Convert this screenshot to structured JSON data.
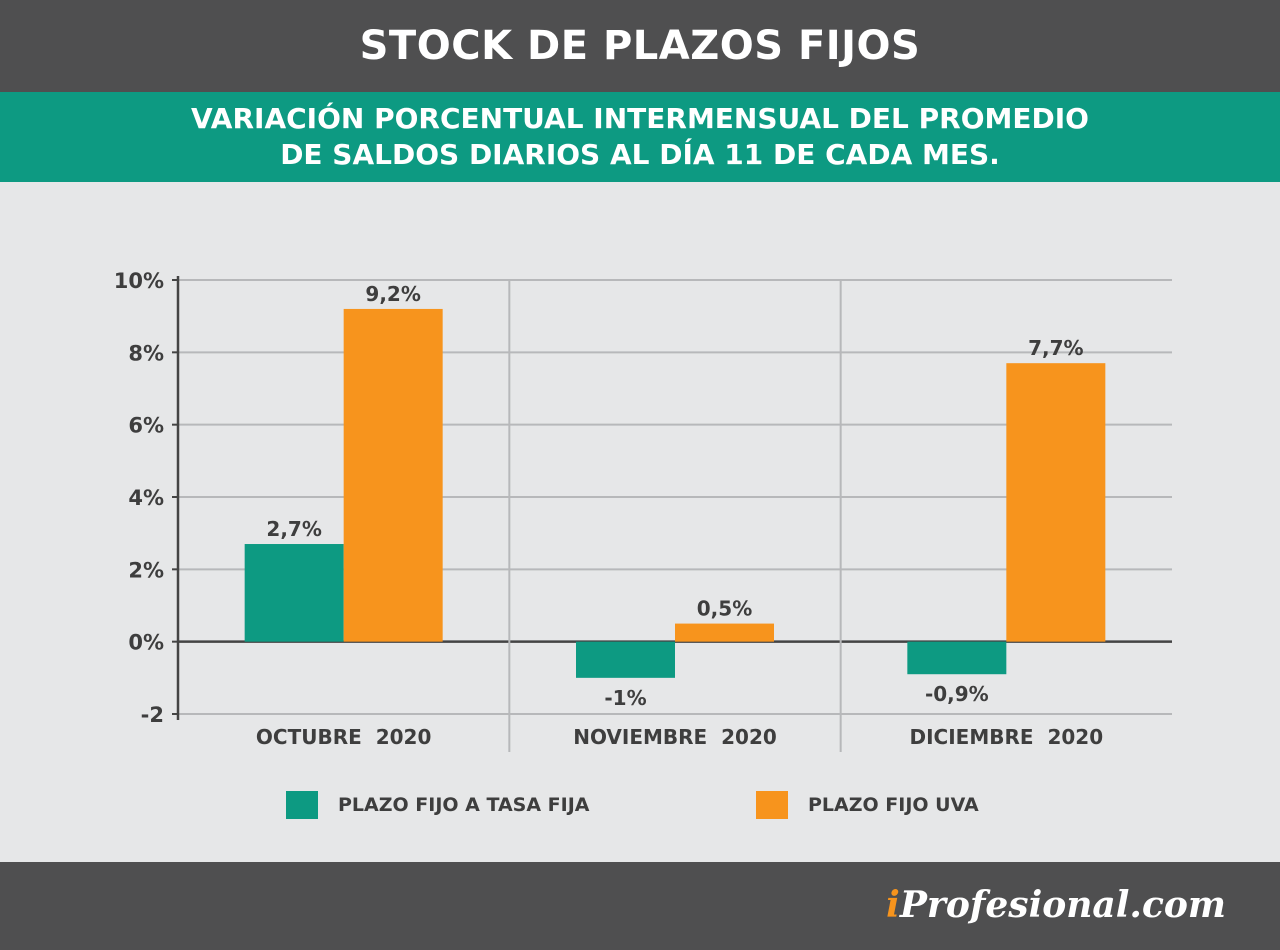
{
  "header": {
    "title": "STOCK DE PLAZOS FIJOS"
  },
  "subheader": {
    "line1": "VARIACIÓN PORCENTUAL INTERMENSUAL DEL PROMEDIO",
    "line2": "DE SALDOS DIARIOS AL DÍA 11 DE CADA MES."
  },
  "chart_data": {
    "type": "bar",
    "categories": [
      "OCTUBRE  2020",
      "NOVIEMBRE  2020",
      "DICIEMBRE  2020"
    ],
    "series": [
      {
        "name": "PLAZO FIJO A TASA FIJA",
        "values": [
          2.7,
          -1,
          -0.9
        ],
        "labels": [
          "2,7%",
          "-1%",
          "-0,9%"
        ],
        "color": "#0d9a82"
      },
      {
        "name": "PLAZO FIJO UVA",
        "values": [
          9.2,
          0.5,
          7.7
        ],
        "labels": [
          "9,2%",
          "0,5%",
          "7,7%"
        ],
        "color": "#f7941d"
      }
    ],
    "ylim": [
      -2,
      10
    ],
    "yticks": [
      -2,
      0,
      2,
      4,
      6,
      8,
      10
    ],
    "ytick_labels": [
      "-2",
      "0%",
      "2%",
      "4%",
      "6%",
      "8%",
      "10%"
    ],
    "grid": true
  },
  "legend": {
    "item1": "PLAZO FIJO A TASA FIJA",
    "item2": "PLAZO FIJO UVA"
  },
  "footer": {
    "brand_i": "i",
    "brand_rest": "Profesional.com"
  },
  "colors": {
    "header_bg": "#4f4f50",
    "subheader_bg": "#0d9a82",
    "background": "#e6e7e8",
    "fixed_rate": "#0d9a82",
    "uva": "#f7941d"
  }
}
